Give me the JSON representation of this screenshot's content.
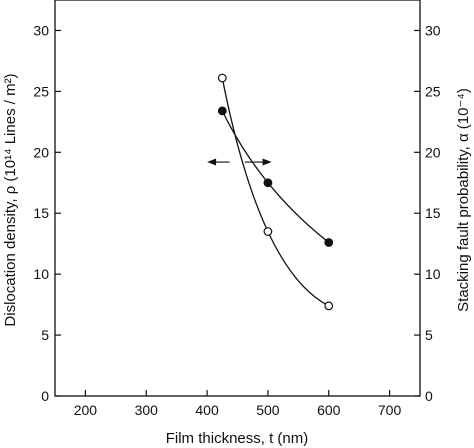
{
  "chart_data": {
    "type": "scatter",
    "title": "",
    "xlabel": "Film thickness, t (nm)",
    "ylabel_left": "Dislocation density, ρ (10¹⁴ Lines / m²)",
    "ylabel_right": "Stacking fault probability, α (10⁻⁴)",
    "xlim": [
      150,
      750
    ],
    "ylim": [
      0,
      32.5
    ],
    "ylim_right": [
      0,
      32.5
    ],
    "x_ticks": [
      200,
      300,
      400,
      500,
      600,
      700
    ],
    "y_ticks": [
      0,
      5,
      10,
      15,
      20,
      25,
      30
    ],
    "y_ticks_right": [
      0,
      5,
      10,
      15,
      20,
      25,
      30
    ],
    "grid": false,
    "legend": "none",
    "series": [
      {
        "marker": "filled-circle",
        "axis": "left",
        "color": "#111111",
        "x": [
          425,
          500,
          600
        ],
        "y": [
          23.4,
          17.5,
          12.6
        ]
      },
      {
        "marker": "open-circle",
        "axis": "right",
        "color": "#111111",
        "x": [
          425,
          500,
          600
        ],
        "y": [
          26.1,
          13.5,
          7.4
        ]
      }
    ],
    "annotations": [
      {
        "type": "double-arrow",
        "pointing": [
          "left",
          "right"
        ]
      }
    ]
  }
}
